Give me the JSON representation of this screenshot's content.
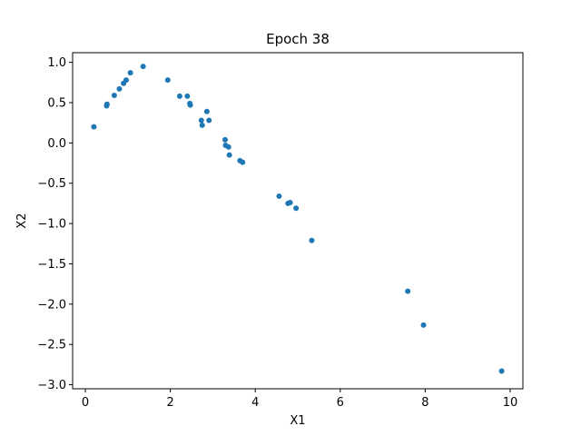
{
  "chart_data": {
    "type": "scatter",
    "title": "Epoch 38",
    "xlabel": "X1",
    "ylabel": "X2",
    "xlim": [
      -0.3,
      10.3
    ],
    "ylim": [
      -3.05,
      1.12
    ],
    "xticks": [
      0,
      2,
      4,
      6,
      8,
      10
    ],
    "yticks": [
      1.0,
      0.5,
      0.0,
      -0.5,
      -1.0,
      -1.5,
      -2.0,
      -2.5,
      -3.0
    ],
    "xtick_labels": [
      "0",
      "2",
      "4",
      "6",
      "8",
      "10"
    ],
    "ytick_labels": [
      "1.0",
      "0.5",
      "0.0",
      "−0.5",
      "−1.0",
      "−1.5",
      "−2.0",
      "−2.5",
      "−3.0"
    ],
    "grid": false,
    "marker_color": "#1f77b4",
    "series": [
      {
        "points": [
          [
            0.2,
            0.2
          ],
          [
            0.5,
            0.46
          ],
          [
            0.51,
            0.48
          ],
          [
            0.68,
            0.59
          ],
          [
            0.8,
            0.67
          ],
          [
            0.9,
            0.74
          ],
          [
            0.96,
            0.78
          ],
          [
            1.06,
            0.87
          ],
          [
            1.36,
            0.95
          ],
          [
            1.94,
            0.78
          ],
          [
            2.22,
            0.58
          ],
          [
            2.4,
            0.58
          ],
          [
            2.46,
            0.49
          ],
          [
            2.47,
            0.47
          ],
          [
            2.73,
            0.28
          ],
          [
            2.75,
            0.22
          ],
          [
            2.86,
            0.39
          ],
          [
            2.91,
            0.28
          ],
          [
            3.29,
            0.04
          ],
          [
            3.3,
            -0.03
          ],
          [
            3.37,
            -0.05
          ],
          [
            3.39,
            -0.15
          ],
          [
            3.64,
            -0.22
          ],
          [
            3.7,
            -0.24
          ],
          [
            4.56,
            -0.66
          ],
          [
            4.77,
            -0.75
          ],
          [
            4.82,
            -0.74
          ],
          [
            4.96,
            -0.81
          ],
          [
            5.33,
            -1.21
          ],
          [
            7.59,
            -1.84
          ],
          [
            7.96,
            -2.26
          ],
          [
            9.8,
            -2.83
          ]
        ]
      }
    ]
  }
}
